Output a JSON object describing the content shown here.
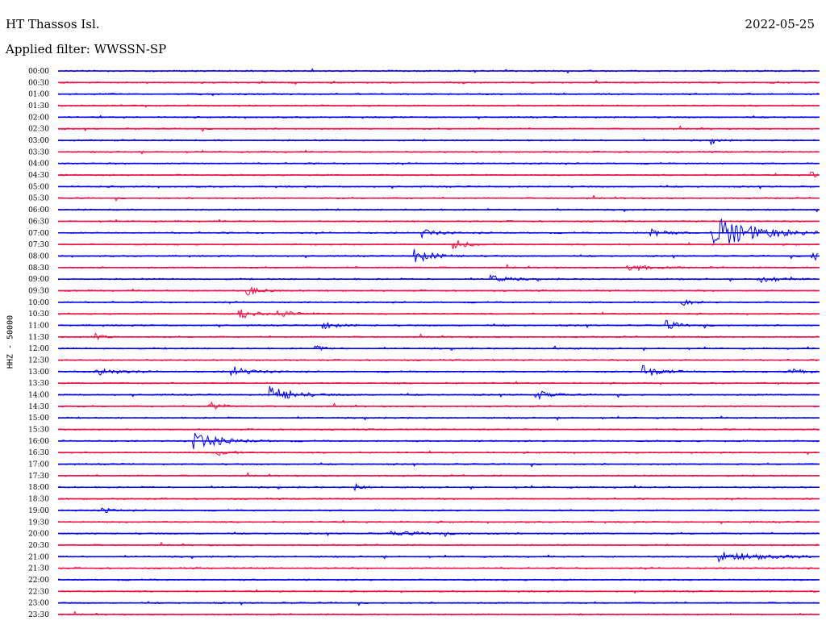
{
  "header": {
    "station": "HT Thassos Isl.",
    "date": "2022-05-25",
    "filter": "Applied filter: WWSSN-SP"
  },
  "chart_data": {
    "type": "line",
    "ylabel": "HHZ - 50000",
    "colors": {
      "even_rows": "#0000ee",
      "odd_rows": "#ee1144"
    },
    "rows": [
      "00:00",
      "00:30",
      "01:00",
      "01:30",
      "02:00",
      "02:30",
      "03:00",
      "03:30",
      "04:00",
      "04:30",
      "05:00",
      "05:30",
      "06:00",
      "06:30",
      "07:00",
      "07:30",
      "08:00",
      "08:30",
      "09:00",
      "09:30",
      "10:00",
      "10:30",
      "11:00",
      "11:30",
      "12:00",
      "12:30",
      "13:00",
      "13:30",
      "14:00",
      "14:30",
      "15:00",
      "15:30",
      "16:00",
      "16:30",
      "17:00",
      "17:30",
      "18:00",
      "18:30",
      "19:00",
      "19:30",
      "20:00",
      "20:30",
      "21:00",
      "21:30",
      "22:00",
      "22:30",
      "23:00",
      "23:30"
    ],
    "events": [
      {
        "row": 6,
        "t": 0.86,
        "amp": 0.6,
        "dur": 0.008
      },
      {
        "row": 9,
        "t": 0.99,
        "amp": 0.9,
        "dur": 0.02
      },
      {
        "row": 14,
        "t": 0.86,
        "amp": 4.0,
        "dur": 0.05
      },
      {
        "row": 14,
        "t": 0.48,
        "amp": 1.0,
        "dur": 0.015
      },
      {
        "row": 14,
        "t": 0.78,
        "amp": 1.0,
        "dur": 0.015
      },
      {
        "row": 15,
        "t": 0.52,
        "amp": 1.2,
        "dur": 0.015
      },
      {
        "row": 16,
        "t": 0.47,
        "amp": 1.6,
        "dur": 0.02
      },
      {
        "row": 16,
        "t": 0.99,
        "amp": 1.0,
        "dur": 0.02
      },
      {
        "row": 17,
        "t": 0.75,
        "amp": 0.9,
        "dur": 0.02
      },
      {
        "row": 18,
        "t": 0.57,
        "amp": 0.8,
        "dur": 0.02
      },
      {
        "row": 18,
        "t": 0.92,
        "amp": 1.0,
        "dur": 0.02
      },
      {
        "row": 19,
        "t": 0.25,
        "amp": 1.0,
        "dur": 0.015
      },
      {
        "row": 20,
        "t": 0.82,
        "amp": 0.8,
        "dur": 0.01
      },
      {
        "row": 21,
        "t": 0.24,
        "amp": 1.2,
        "dur": 0.015
      },
      {
        "row": 21,
        "t": 0.29,
        "amp": 1.2,
        "dur": 0.015
      },
      {
        "row": 22,
        "t": 0.35,
        "amp": 0.8,
        "dur": 0.015
      },
      {
        "row": 22,
        "t": 0.8,
        "amp": 1.0,
        "dur": 0.015
      },
      {
        "row": 23,
        "t": 0.05,
        "amp": 0.8,
        "dur": 0.01
      },
      {
        "row": 24,
        "t": 0.34,
        "amp": 0.6,
        "dur": 0.01
      },
      {
        "row": 24,
        "t": 0.65,
        "amp": 0.5,
        "dur": 0.01
      },
      {
        "row": 26,
        "t": 0.05,
        "amp": 1.1,
        "dur": 0.02
      },
      {
        "row": 26,
        "t": 0.23,
        "amp": 1.2,
        "dur": 0.02
      },
      {
        "row": 26,
        "t": 0.77,
        "amp": 1.4,
        "dur": 0.02
      },
      {
        "row": 26,
        "t": 0.96,
        "amp": 0.7,
        "dur": 0.02
      },
      {
        "row": 28,
        "t": 0.28,
        "amp": 2.0,
        "dur": 0.025
      },
      {
        "row": 28,
        "t": 0.63,
        "amp": 1.0,
        "dur": 0.015
      },
      {
        "row": 29,
        "t": 0.2,
        "amp": 0.9,
        "dur": 0.015
      },
      {
        "row": 32,
        "t": 0.18,
        "amp": 2.0,
        "dur": 0.03
      },
      {
        "row": 33,
        "t": 0.21,
        "amp": 0.8,
        "dur": 0.015
      },
      {
        "row": 36,
        "t": 0.39,
        "amp": 0.8,
        "dur": 0.01
      },
      {
        "row": 38,
        "t": 0.06,
        "amp": 0.6,
        "dur": 0.01
      },
      {
        "row": 40,
        "t": 0.44,
        "amp": 0.4,
        "dur": 0.05
      },
      {
        "row": 42,
        "t": 0.87,
        "amp": 1.0,
        "dur": 0.06
      }
    ]
  }
}
